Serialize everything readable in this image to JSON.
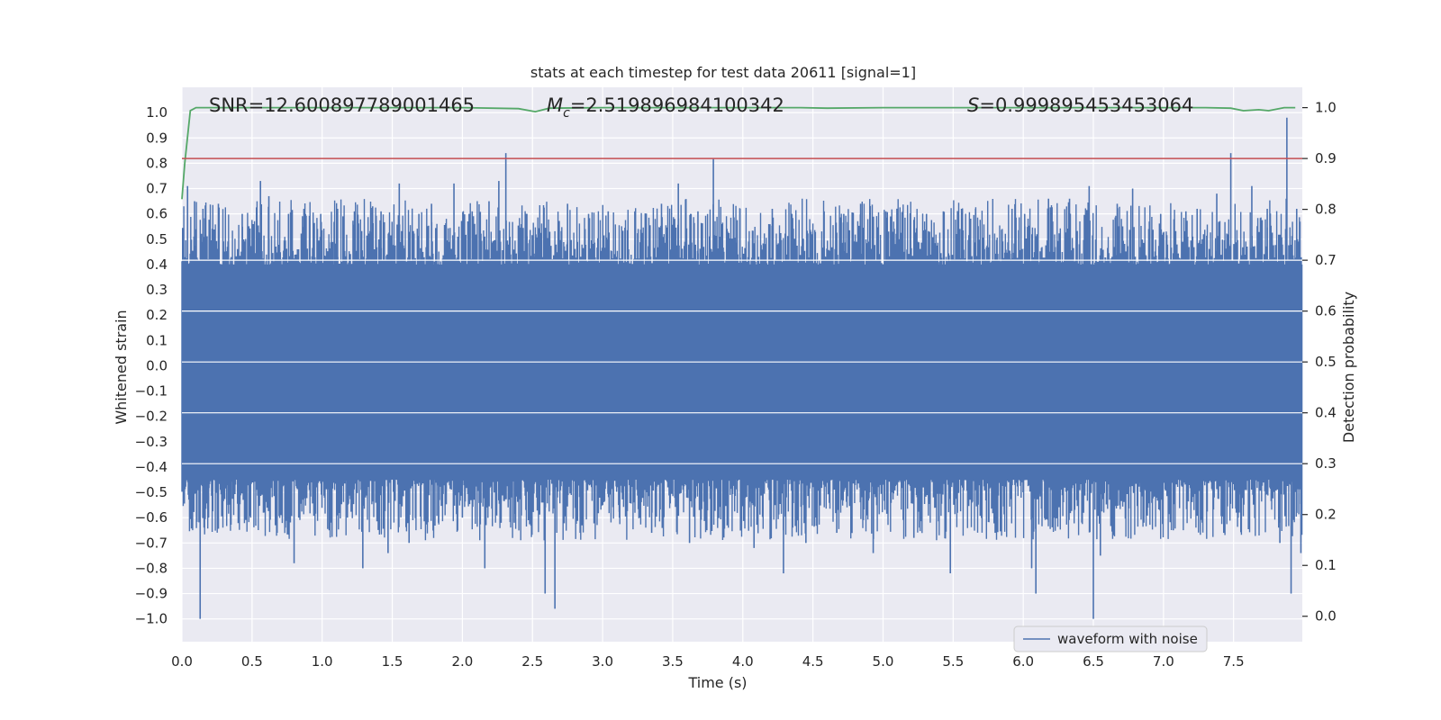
{
  "chart_data": {
    "type": "line",
    "title": "stats at each timestep for test data 20611 [signal=1]",
    "xlabel": "Time (s)",
    "ylabel": "Whitened strain",
    "y2label": "Detection probability",
    "xlim": [
      0.0,
      7.99
    ],
    "ylim": [
      -1.09,
      1.1
    ],
    "y2lim": [
      -0.05,
      1.04
    ],
    "xticks": [
      "0.0",
      "0.5",
      "1.0",
      "1.5",
      "2.0",
      "2.5",
      "3.0",
      "3.5",
      "4.0",
      "4.5",
      "5.0",
      "5.5",
      "6.0",
      "6.5",
      "7.0",
      "7.5"
    ],
    "yticks": [
      "1.0",
      "0.9",
      "0.8",
      "0.7",
      "0.6",
      "0.5",
      "0.4",
      "0.3",
      "0.2",
      "0.1",
      "0.0",
      "−0.1",
      "−0.2",
      "−0.3",
      "−0.4",
      "−0.5",
      "−0.6",
      "−0.7",
      "−0.8",
      "−0.9",
      "−1.0"
    ],
    "y2ticks": [
      "1.0",
      "0.9",
      "0.8",
      "0.7",
      "0.6",
      "0.5",
      "0.4",
      "0.3",
      "0.2",
      "0.1",
      "0.0"
    ],
    "annotations": {
      "snr": "SNR=12.600897789001465",
      "mc_symbol": "M",
      "mc_sub": "c",
      "mc_value": "=2.519896984100342",
      "s_symbol": "S",
      "s_value": "=0.999895453453064"
    },
    "grid": true,
    "legend": {
      "position": "lower-right",
      "entries": [
        "waveform with noise"
      ]
    },
    "colors": {
      "waveform": "#4c72b0",
      "probability": "#55a868",
      "threshold": "#c44e52",
      "background": "#eaeaf2",
      "grid": "#ffffff"
    },
    "series": [
      {
        "name": "waveform with noise",
        "axis": "left",
        "noise_band": [
          -0.45,
          0.4
        ],
        "peaks": [
          [
            0.04,
            0.71
          ],
          [
            0.09,
            0.65
          ],
          [
            0.13,
            -1.0
          ],
          [
            0.15,
            0.62
          ],
          [
            0.19,
            -0.6
          ],
          [
            0.26,
            0.64
          ],
          [
            0.33,
            -0.55
          ],
          [
            0.43,
            0.6
          ],
          [
            0.49,
            -0.6
          ],
          [
            0.56,
            0.73
          ],
          [
            0.62,
            0.67
          ],
          [
            0.67,
            -0.6
          ],
          [
            0.76,
            0.6
          ],
          [
            0.8,
            -0.78
          ],
          [
            0.87,
            0.62
          ],
          [
            0.99,
            0.6
          ],
          [
            1.05,
            -0.65
          ],
          [
            1.11,
            0.62
          ],
          [
            1.18,
            -0.6
          ],
          [
            1.23,
            0.61
          ],
          [
            1.29,
            -0.8
          ],
          [
            1.36,
            0.63
          ],
          [
            1.42,
            0.61
          ],
          [
            1.47,
            -0.74
          ],
          [
            1.55,
            0.72
          ],
          [
            1.62,
            -0.7
          ],
          [
            1.69,
            0.6
          ],
          [
            1.78,
            0.64
          ],
          [
            1.83,
            -0.62
          ],
          [
            1.94,
            0.72
          ],
          [
            2.0,
            -0.6
          ],
          [
            2.07,
            0.61
          ],
          [
            2.16,
            -0.8
          ],
          [
            2.19,
            0.65
          ],
          [
            2.26,
            0.73
          ],
          [
            2.31,
            0.84
          ],
          [
            2.37,
            -0.62
          ],
          [
            2.46,
            0.6
          ],
          [
            2.59,
            -0.9
          ],
          [
            2.66,
            -0.96
          ],
          [
            2.75,
            0.64
          ],
          [
            2.84,
            -0.66
          ],
          [
            2.9,
            0.6
          ],
          [
            3.04,
            0.61
          ],
          [
            3.12,
            -0.6
          ],
          [
            3.23,
            0.61
          ],
          [
            3.35,
            -0.66
          ],
          [
            3.42,
            0.64
          ],
          [
            3.54,
            0.72
          ],
          [
            3.62,
            -0.7
          ],
          [
            3.68,
            0.61
          ],
          [
            3.79,
            0.82
          ],
          [
            3.86,
            -0.65
          ],
          [
            3.98,
            0.62
          ],
          [
            4.08,
            -0.72
          ],
          [
            4.21,
            0.62
          ],
          [
            4.29,
            -0.82
          ],
          [
            4.35,
            0.6
          ],
          [
            4.45,
            -0.7
          ],
          [
            4.58,
            0.61
          ],
          [
            4.67,
            -0.66
          ],
          [
            4.72,
            0.6
          ],
          [
            4.84,
            0.64
          ],
          [
            4.93,
            -0.74
          ],
          [
            5.02,
            0.61
          ],
          [
            5.14,
            0.61
          ],
          [
            5.22,
            -0.68
          ],
          [
            5.31,
            0.6
          ],
          [
            5.43,
            0.61
          ],
          [
            5.48,
            -0.82
          ],
          [
            5.56,
            0.62
          ],
          [
            5.66,
            0.62
          ],
          [
            5.8,
            -0.66
          ],
          [
            5.92,
            0.62
          ],
          [
            6.01,
            0.6
          ],
          [
            6.06,
            -0.8
          ],
          [
            6.09,
            -0.9
          ],
          [
            6.18,
            0.66
          ],
          [
            6.33,
            0.66
          ],
          [
            6.47,
            0.71
          ],
          [
            6.5,
            -1.0
          ],
          [
            6.55,
            -0.75
          ],
          [
            6.67,
            0.64
          ],
          [
            6.78,
            0.7
          ],
          [
            6.86,
            -0.62
          ],
          [
            6.98,
            0.6
          ],
          [
            7.07,
            -0.65
          ],
          [
            7.16,
            0.61
          ],
          [
            7.24,
            0.62
          ],
          [
            7.38,
            0.68
          ],
          [
            7.43,
            -0.66
          ],
          [
            7.48,
            0.84
          ],
          [
            7.54,
            -0.58
          ],
          [
            7.63,
            0.71
          ],
          [
            7.74,
            0.62
          ],
          [
            7.83,
            -0.7
          ],
          [
            7.88,
            0.98
          ],
          [
            7.91,
            -0.9
          ],
          [
            7.95,
            0.62
          ],
          [
            7.98,
            -0.74
          ]
        ]
      },
      {
        "name": "",
        "axis": "right",
        "x": [
          0.0,
          0.02,
          0.06,
          0.1,
          0.3,
          0.6,
          1.0,
          1.5,
          2.0,
          2.4,
          2.52,
          2.62,
          3.0,
          3.6,
          4.0,
          4.4,
          4.6,
          5.0,
          5.6,
          6.0,
          6.6,
          7.0,
          7.3,
          7.48,
          7.57,
          7.68,
          7.75,
          7.86,
          7.94
        ],
        "y": [
          0.82,
          0.89,
          0.994,
          1.0,
          1.0,
          1.0,
          1.0,
          1.0,
          1.0,
          0.998,
          0.992,
          0.999,
          1.0,
          1.0,
          1.0,
          1.0,
          0.999,
          1.0,
          1.0,
          1.0,
          1.0,
          1.0,
          1.0,
          0.999,
          0.994,
          0.996,
          0.994,
          1.0,
          1.0
        ]
      },
      {
        "name": "",
        "axis": "right",
        "type": "hline",
        "y": 0.9
      }
    ]
  }
}
